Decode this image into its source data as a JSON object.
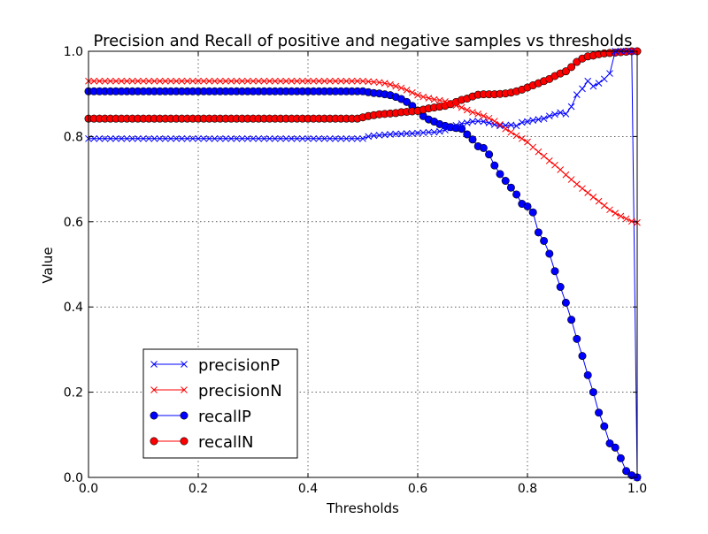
{
  "chart_data": {
    "type": "line",
    "title": "Precision and Recall of positive and negative samples vs thresholds",
    "xlabel": "Thresholds",
    "ylabel": "Value",
    "xlim": [
      0,
      1
    ],
    "ylim": [
      0,
      1
    ],
    "xticks": [
      "0.0",
      "0.2",
      "0.4",
      "0.6",
      "0.8",
      "1.0"
    ],
    "yticks": [
      "0.0",
      "0.2",
      "0.4",
      "0.6",
      "0.8",
      "1.0"
    ],
    "grid": true,
    "legend_position": "lower-left",
    "x": [
      0.0,
      0.01,
      0.02,
      0.03,
      0.04,
      0.05,
      0.06,
      0.07,
      0.08,
      0.09,
      0.1,
      0.11,
      0.12,
      0.13,
      0.14,
      0.15,
      0.16,
      0.17,
      0.18,
      0.19,
      0.2,
      0.21,
      0.22,
      0.23,
      0.24,
      0.25,
      0.26,
      0.27,
      0.28,
      0.29,
      0.3,
      0.31,
      0.32,
      0.33,
      0.34,
      0.35,
      0.36,
      0.37,
      0.38,
      0.39,
      0.4,
      0.41,
      0.42,
      0.43,
      0.44,
      0.45,
      0.46,
      0.47,
      0.48,
      0.49,
      0.5,
      0.51,
      0.52,
      0.53,
      0.54,
      0.55,
      0.56,
      0.57,
      0.58,
      0.59,
      0.6,
      0.61,
      0.62,
      0.63,
      0.64,
      0.65,
      0.66,
      0.67,
      0.68,
      0.69,
      0.7,
      0.71,
      0.72,
      0.73,
      0.74,
      0.75,
      0.76,
      0.77,
      0.78,
      0.79,
      0.8,
      0.81,
      0.82,
      0.83,
      0.84,
      0.85,
      0.86,
      0.87,
      0.88,
      0.89,
      0.9,
      0.91,
      0.92,
      0.93,
      0.94,
      0.95,
      0.96,
      0.97,
      0.98,
      0.99,
      1.0
    ],
    "series": [
      {
        "name": "precisionP",
        "color": "#0000ff",
        "marker": "x",
        "values": [
          0.795,
          0.795,
          0.795,
          0.795,
          0.795,
          0.795,
          0.795,
          0.795,
          0.795,
          0.795,
          0.795,
          0.795,
          0.795,
          0.795,
          0.795,
          0.795,
          0.795,
          0.795,
          0.795,
          0.795,
          0.795,
          0.795,
          0.795,
          0.795,
          0.795,
          0.795,
          0.795,
          0.795,
          0.795,
          0.795,
          0.795,
          0.795,
          0.795,
          0.795,
          0.795,
          0.795,
          0.795,
          0.795,
          0.795,
          0.795,
          0.795,
          0.795,
          0.795,
          0.795,
          0.795,
          0.795,
          0.795,
          0.795,
          0.795,
          0.795,
          0.795,
          0.8,
          0.802,
          0.803,
          0.804,
          0.805,
          0.806,
          0.806,
          0.807,
          0.807,
          0.808,
          0.809,
          0.81,
          0.81,
          0.812,
          0.815,
          0.82,
          0.826,
          0.83,
          0.832,
          0.835,
          0.836,
          0.835,
          0.832,
          0.828,
          0.825,
          0.826,
          0.827,
          0.825,
          0.833,
          0.835,
          0.838,
          0.84,
          0.842,
          0.848,
          0.852,
          0.856,
          0.853,
          0.87,
          0.898,
          0.912,
          0.93,
          0.918,
          0.925,
          0.935,
          0.948,
          1.0,
          1.0,
          1.0,
          1.0,
          0.0
        ]
      },
      {
        "name": "precisionN",
        "color": "#ff0000",
        "marker": "x",
        "values": [
          0.93,
          0.93,
          0.93,
          0.93,
          0.93,
          0.93,
          0.93,
          0.93,
          0.93,
          0.93,
          0.93,
          0.93,
          0.93,
          0.93,
          0.93,
          0.93,
          0.93,
          0.93,
          0.93,
          0.93,
          0.93,
          0.93,
          0.93,
          0.93,
          0.93,
          0.93,
          0.93,
          0.93,
          0.93,
          0.93,
          0.93,
          0.93,
          0.93,
          0.93,
          0.93,
          0.93,
          0.93,
          0.93,
          0.93,
          0.93,
          0.93,
          0.93,
          0.93,
          0.93,
          0.93,
          0.93,
          0.93,
          0.93,
          0.93,
          0.93,
          0.93,
          0.929,
          0.928,
          0.927,
          0.925,
          0.922,
          0.918,
          0.914,
          0.909,
          0.903,
          0.897,
          0.893,
          0.89,
          0.887,
          0.885,
          0.882,
          0.878,
          0.873,
          0.868,
          0.862,
          0.857,
          0.853,
          0.848,
          0.843,
          0.836,
          0.828,
          0.818,
          0.81,
          0.802,
          0.795,
          0.787,
          0.775,
          0.764,
          0.754,
          0.743,
          0.733,
          0.722,
          0.71,
          0.699,
          0.688,
          0.678,
          0.668,
          0.658,
          0.648,
          0.638,
          0.628,
          0.62,
          0.613,
          0.607,
          0.601,
          0.598
        ]
      },
      {
        "name": "recallP",
        "color": "#0000ff",
        "marker": "o",
        "values": [
          0.906,
          0.906,
          0.906,
          0.906,
          0.906,
          0.906,
          0.906,
          0.906,
          0.906,
          0.906,
          0.906,
          0.906,
          0.906,
          0.906,
          0.906,
          0.906,
          0.906,
          0.906,
          0.906,
          0.906,
          0.906,
          0.906,
          0.906,
          0.906,
          0.906,
          0.906,
          0.906,
          0.906,
          0.906,
          0.906,
          0.906,
          0.906,
          0.906,
          0.906,
          0.906,
          0.906,
          0.906,
          0.906,
          0.906,
          0.906,
          0.906,
          0.906,
          0.906,
          0.906,
          0.906,
          0.906,
          0.906,
          0.906,
          0.906,
          0.906,
          0.906,
          0.904,
          0.902,
          0.901,
          0.899,
          0.897,
          0.893,
          0.888,
          0.881,
          0.872,
          0.861,
          0.848,
          0.84,
          0.835,
          0.829,
          0.825,
          0.822,
          0.82,
          0.818,
          0.805,
          0.793,
          0.777,
          0.773,
          0.758,
          0.732,
          0.712,
          0.696,
          0.68,
          0.664,
          0.642,
          0.636,
          0.622,
          0.575,
          0.555,
          0.525,
          0.484,
          0.447,
          0.41,
          0.37,
          0.325,
          0.285,
          0.24,
          0.2,
          0.152,
          0.12,
          0.08,
          0.07,
          0.045,
          0.015,
          0.005,
          0.0
        ]
      },
      {
        "name": "recallN",
        "color": "#ff0000",
        "marker": "o",
        "values": [
          0.842,
          0.842,
          0.842,
          0.842,
          0.842,
          0.842,
          0.842,
          0.842,
          0.842,
          0.842,
          0.842,
          0.842,
          0.842,
          0.842,
          0.842,
          0.842,
          0.842,
          0.842,
          0.842,
          0.842,
          0.842,
          0.842,
          0.842,
          0.842,
          0.842,
          0.842,
          0.842,
          0.842,
          0.842,
          0.842,
          0.842,
          0.842,
          0.842,
          0.842,
          0.842,
          0.842,
          0.842,
          0.842,
          0.842,
          0.842,
          0.842,
          0.842,
          0.842,
          0.842,
          0.842,
          0.842,
          0.842,
          0.842,
          0.842,
          0.842,
          0.845,
          0.848,
          0.85,
          0.852,
          0.853,
          0.854,
          0.855,
          0.857,
          0.858,
          0.859,
          0.86,
          0.863,
          0.866,
          0.868,
          0.87,
          0.872,
          0.876,
          0.881,
          0.886,
          0.889,
          0.894,
          0.898,
          0.899,
          0.899,
          0.899,
          0.9,
          0.901,
          0.903,
          0.906,
          0.91,
          0.915,
          0.92,
          0.925,
          0.93,
          0.935,
          0.942,
          0.948,
          0.953,
          0.963,
          0.975,
          0.983,
          0.988,
          0.99,
          0.993,
          0.995,
          0.996,
          0.997,
          0.998,
          0.999,
          1.0,
          1.0
        ]
      }
    ]
  }
}
